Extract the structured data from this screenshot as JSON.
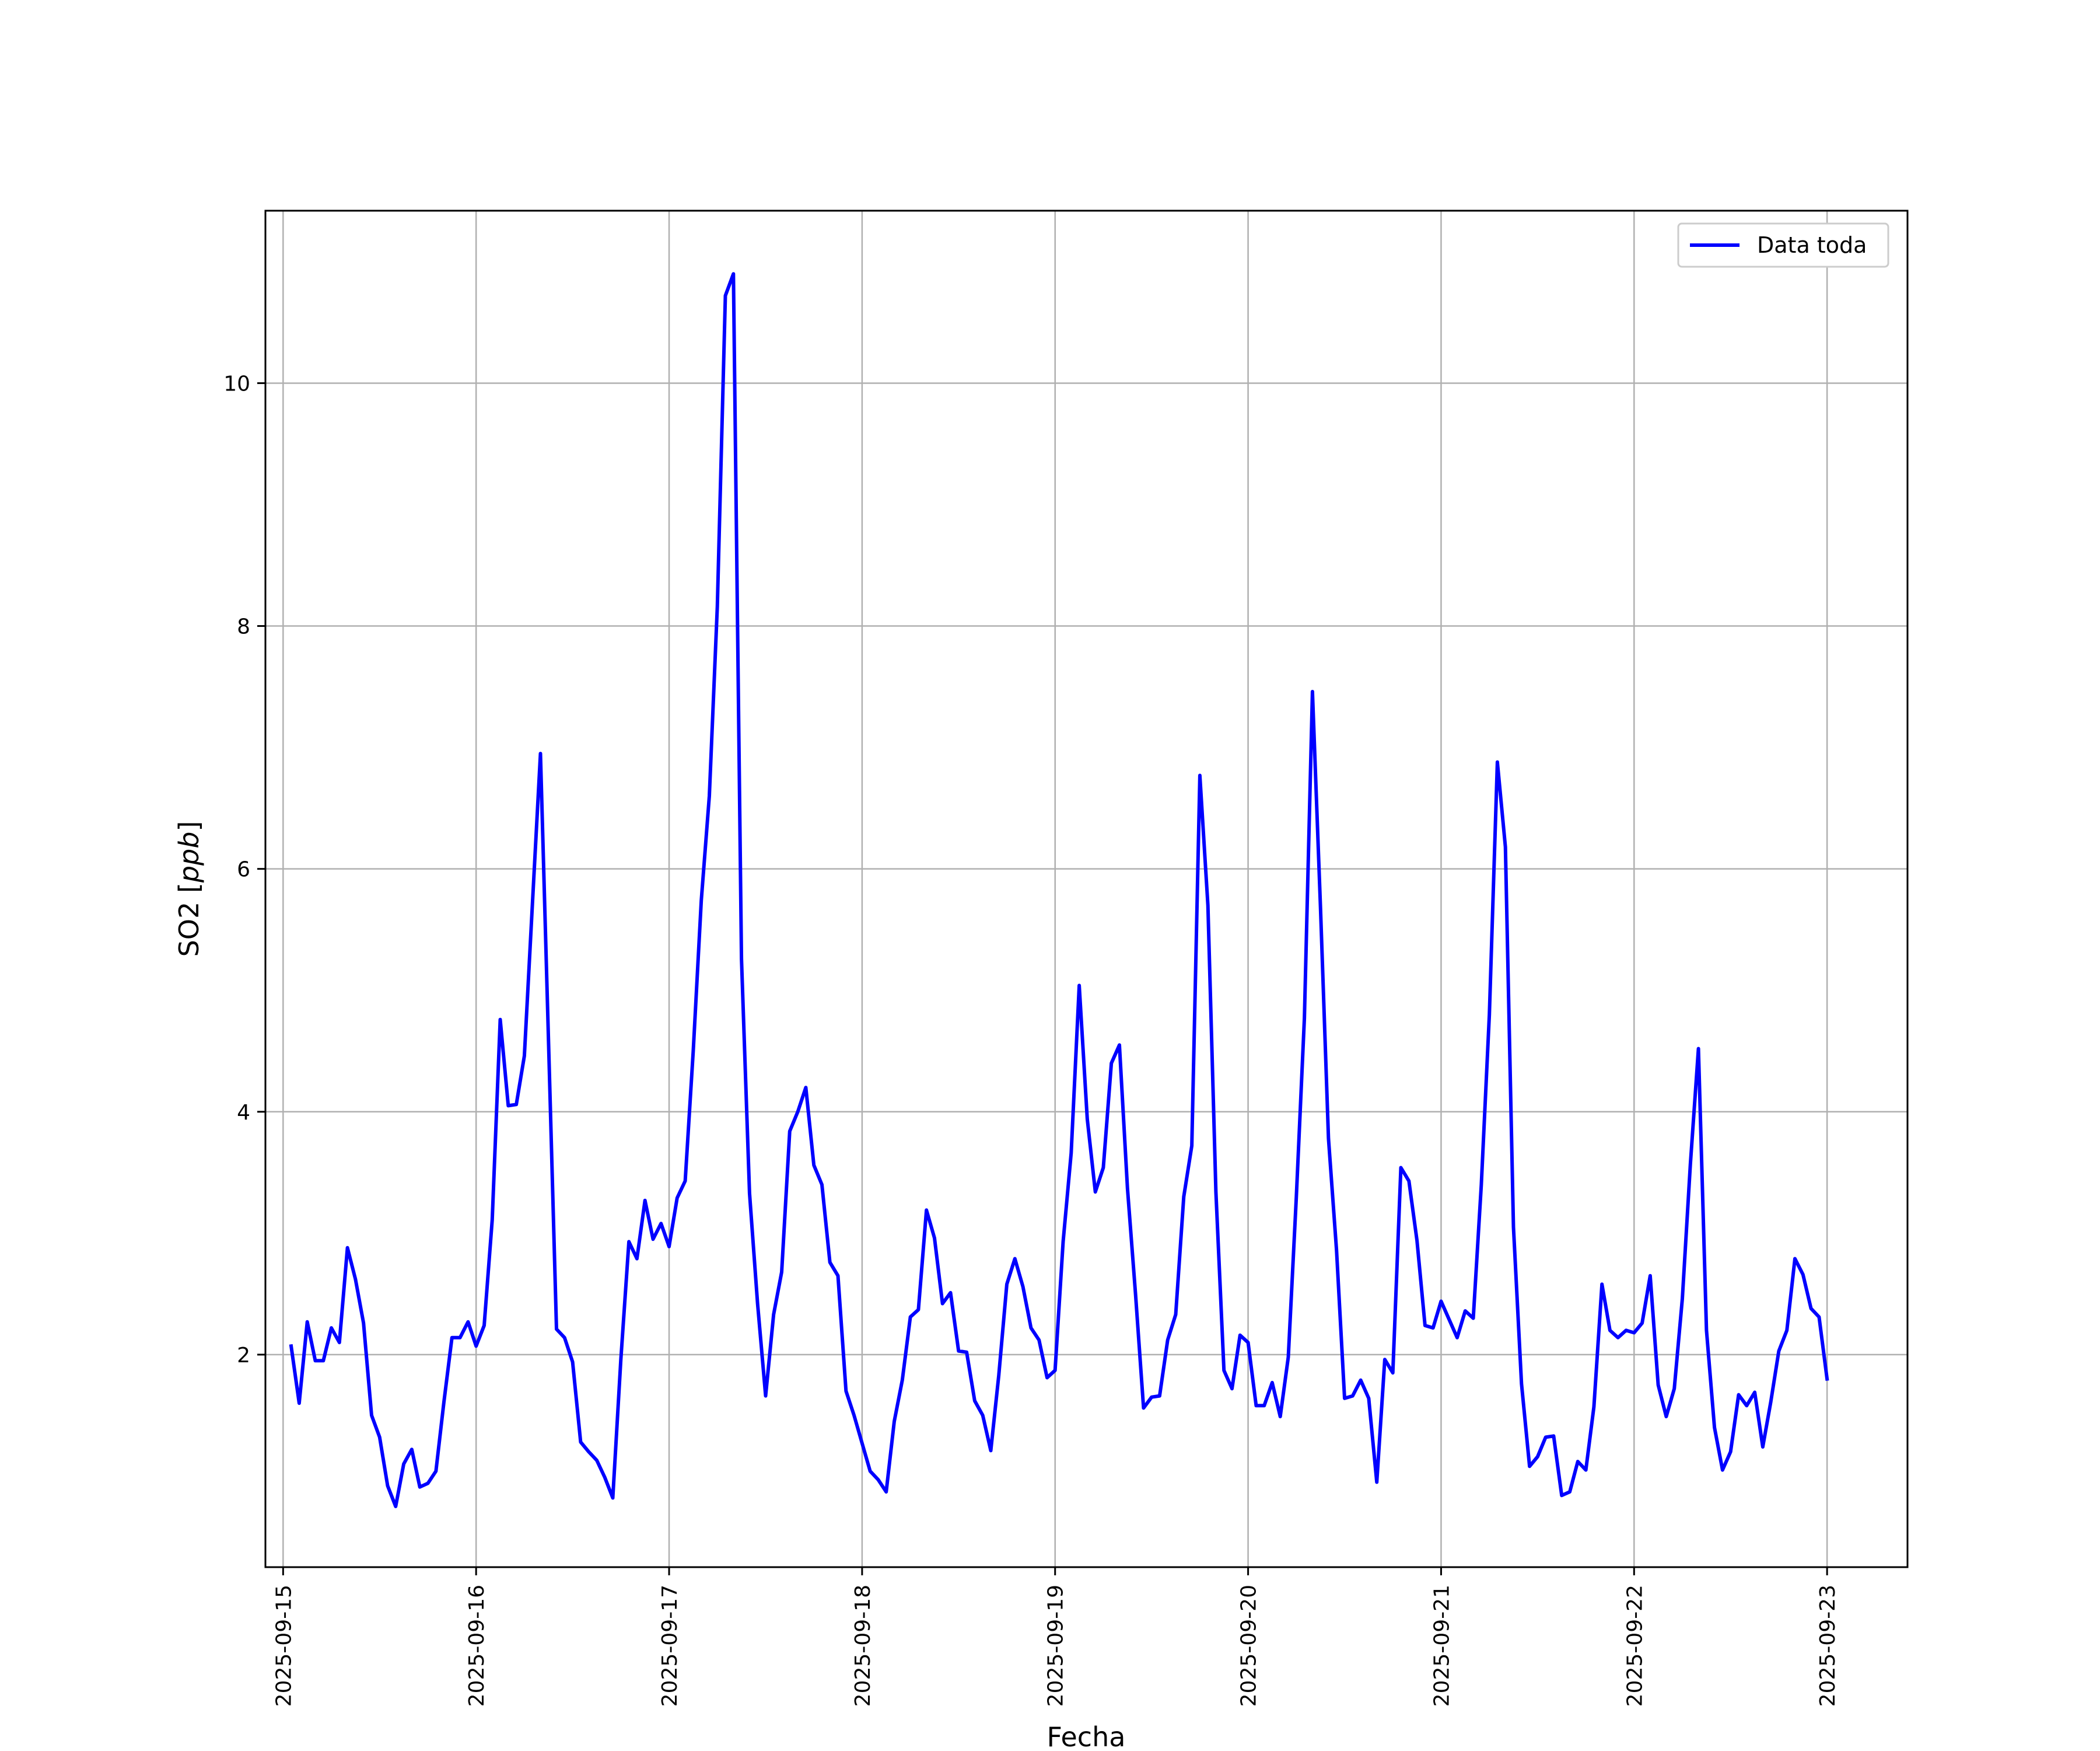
{
  "chart_data": {
    "type": "line",
    "title": "",
    "xlabel": "Fecha",
    "ylabel_text": "SO2 [",
    "ylabel_unit": "ppb",
    "ylabel_close": "]",
    "xlim": [
      "2025-09-14 21:48",
      "2025-09-23 10:00"
    ],
    "ylim": [
      0.25,
      11.42
    ],
    "x_ticks": [
      "2025-09-15",
      "2025-09-16",
      "2025-09-17",
      "2025-09-18",
      "2025-09-19",
      "2025-09-20",
      "2025-09-21",
      "2025-09-22",
      "2025-09-23"
    ],
    "y_ticks": [
      2,
      4,
      6,
      8,
      10
    ],
    "grid": true,
    "legend_position": "top-right",
    "series": [
      {
        "name": "Data toda",
        "color": "#0000ff",
        "x_start": "2025-09-15 01:00",
        "x_step_hours": 1,
        "values": [
          2.07,
          1.6,
          2.27,
          1.95,
          1.95,
          2.22,
          2.1,
          2.88,
          2.62,
          2.26,
          1.5,
          1.32,
          0.92,
          0.75,
          1.1,
          1.22,
          0.91,
          0.94,
          1.04,
          1.61,
          2.14,
          2.14,
          2.27,
          2.07,
          2.24,
          3.11,
          4.76,
          4.05,
          4.06,
          4.46,
          5.71,
          6.95,
          4.6,
          2.21,
          2.14,
          1.94,
          1.28,
          1.2,
          1.13,
          0.99,
          0.82,
          1.96,
          2.93,
          2.79,
          3.27,
          2.95,
          3.08,
          2.89,
          3.29,
          3.43,
          4.5,
          5.74,
          6.6,
          8.16,
          10.72,
          10.9,
          5.26,
          3.33,
          2.42,
          1.66,
          2.33,
          2.68,
          3.84,
          4.0,
          4.2,
          3.56,
          3.4,
          2.76,
          2.65,
          1.7,
          1.5,
          1.27,
          1.04,
          0.97,
          0.87,
          1.45,
          1.79,
          2.31,
          2.37,
          3.19,
          2.96,
          2.42,
          2.51,
          2.03,
          2.02,
          1.62,
          1.5,
          1.21,
          1.83,
          2.58,
          2.79,
          2.56,
          2.22,
          2.12,
          1.81,
          1.87,
          2.93,
          3.66,
          5.04,
          3.94,
          3.34,
          3.54,
          4.4,
          4.55,
          3.37,
          2.5,
          1.56,
          1.65,
          1.66,
          2.12,
          2.33,
          3.3,
          3.72,
          6.77,
          5.7,
          3.34,
          1.87,
          1.72,
          2.16,
          2.1,
          1.58,
          1.58,
          1.77,
          1.49,
          1.98,
          3.3,
          4.77,
          7.46,
          5.68,
          3.78,
          2.86,
          1.64,
          1.66,
          1.79,
          1.64,
          0.95,
          1.96,
          1.85,
          3.54,
          3.43,
          2.94,
          2.24,
          2.22,
          2.44,
          2.29,
          2.14,
          2.36,
          2.3,
          3.4,
          4.8,
          6.88,
          6.18,
          3.05,
          1.76,
          1.08,
          1.16,
          1.32,
          1.33,
          0.84,
          0.87,
          1.12,
          1.05,
          1.57,
          2.58,
          2.2,
          2.14,
          2.2,
          2.18,
          2.26,
          2.65,
          1.75,
          1.49,
          1.72,
          2.46,
          3.57,
          4.52,
          2.2,
          1.4,
          1.05,
          1.2,
          1.67,
          1.58,
          1.69,
          1.24,
          1.61,
          2.03,
          2.2,
          2.79,
          2.66,
          2.38,
          2.31,
          1.8
        ]
      }
    ]
  }
}
